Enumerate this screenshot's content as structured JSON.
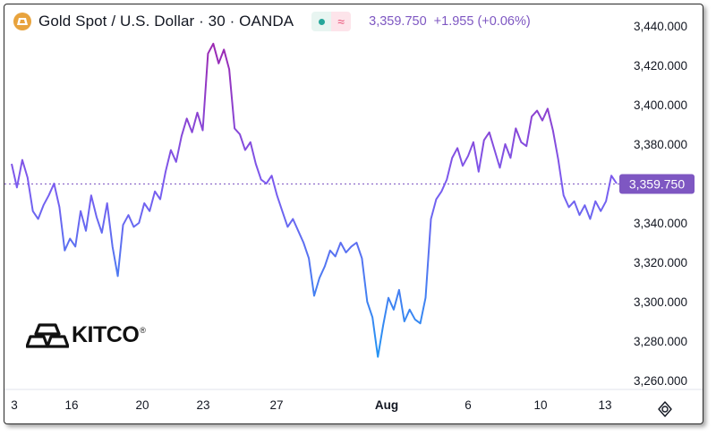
{
  "header": {
    "symbol": "Gold Spot / U.S. Dollar · 30 · OANDA",
    "price": "3,359.750",
    "change": "+1.955 (+0.06%)",
    "icons": [
      "gold-bar-icon",
      "market-open-dot-icon",
      "wave-icon"
    ]
  },
  "price_tag": "3,359.750",
  "logo": {
    "text": "KITCO",
    "mark": "®"
  },
  "colors": {
    "line_high": "#9c27b0",
    "line_mid": "#7b5cf0",
    "line_low": "#2196f3",
    "price_tag": "#7e57c2",
    "quote_text": "#7e57c2"
  },
  "chart_data": {
    "type": "line",
    "title": "Gold Spot / U.S. Dollar · 30 · OANDA",
    "xlabel": "",
    "ylabel": "",
    "x_tick_labels": [
      "3",
      "16",
      "20",
      "23",
      "27",
      "Aug",
      "6",
      "10",
      "13"
    ],
    "y_tick_labels": [
      "3,260.000",
      "3,280.000",
      "3,300.000",
      "3,320.000",
      "3,340.000",
      "3,360.000",
      "3,380.000",
      "3,400.000",
      "3,420.000",
      "3,440.000"
    ],
    "ylim": [
      3255,
      3446
    ],
    "last_value": 3359.75,
    "grid": false,
    "series": [
      {
        "values": [
          3370,
          3358,
          3372,
          3363,
          3346,
          3342,
          3349,
          3354,
          3360,
          3348,
          3326,
          3332,
          3328,
          3346,
          3336,
          3354,
          3343,
          3335,
          3350,
          3328,
          3313,
          3339,
          3344,
          3338,
          3340,
          3350,
          3346,
          3356,
          3352,
          3366,
          3377,
          3371,
          3384,
          3393,
          3386,
          3396,
          3387,
          3426,
          3431,
          3421,
          3428,
          3418,
          3388,
          3385,
          3377,
          3381,
          3370,
          3362,
          3360,
          3364,
          3354,
          3346,
          3338,
          3342,
          3336,
          3330,
          3322,
          3303,
          3312,
          3318,
          3326,
          3323,
          3330,
          3325,
          3328,
          3330,
          3322,
          3300,
          3292,
          3272,
          3288,
          3302,
          3296,
          3306,
          3290,
          3296,
          3291,
          3289,
          3302,
          3342,
          3352,
          3356,
          3362,
          3373,
          3378,
          3369,
          3374,
          3381,
          3366,
          3382,
          3386,
          3377,
          3368,
          3380,
          3373,
          3388,
          3381,
          3379,
          3394,
          3397,
          3392,
          3398,
          3387,
          3372,
          3354,
          3348,
          3351,
          3344,
          3349,
          3342,
          3351,
          3346,
          3351,
          3364,
          3360
        ]
      }
    ]
  }
}
